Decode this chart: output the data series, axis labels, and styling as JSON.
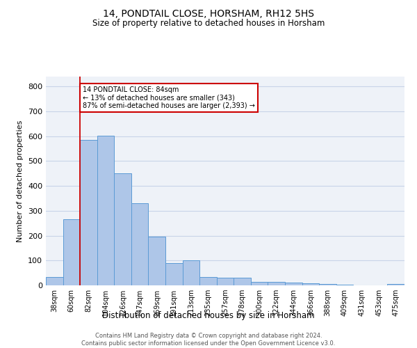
{
  "title": "14, PONDTAIL CLOSE, HORSHAM, RH12 5HS",
  "subtitle": "Size of property relative to detached houses in Horsham",
  "xlabel": "Distribution of detached houses by size in Horsham",
  "ylabel": "Number of detached properties",
  "categories": [
    "38sqm",
    "60sqm",
    "82sqm",
    "104sqm",
    "126sqm",
    "147sqm",
    "169sqm",
    "191sqm",
    "213sqm",
    "235sqm",
    "257sqm",
    "278sqm",
    "300sqm",
    "322sqm",
    "344sqm",
    "366sqm",
    "388sqm",
    "409sqm",
    "431sqm",
    "453sqm",
    "475sqm"
  ],
  "values": [
    35,
    265,
    585,
    602,
    450,
    330,
    195,
    90,
    102,
    35,
    32,
    30,
    15,
    13,
    10,
    8,
    5,
    3,
    0,
    0,
    5
  ],
  "bar_color": "#aec6e8",
  "bar_edge_color": "#5b9bd5",
  "vline_x_index": 2,
  "vline_color": "#cc0000",
  "annotation_text": "14 PONDTAIL CLOSE: 84sqm\n← 13% of detached houses are smaller (343)\n87% of semi-detached houses are larger (2,393) →",
  "annotation_box_color": "#cc0000",
  "annotation_text_color": "#000000",
  "ylim": [
    0,
    840
  ],
  "yticks": [
    0,
    100,
    200,
    300,
    400,
    500,
    600,
    700,
    800
  ],
  "grid_color": "#c8d4e8",
  "bg_color": "#eef2f8",
  "footnote": "Contains HM Land Registry data © Crown copyright and database right 2024.\nContains public sector information licensed under the Open Government Licence v3.0."
}
